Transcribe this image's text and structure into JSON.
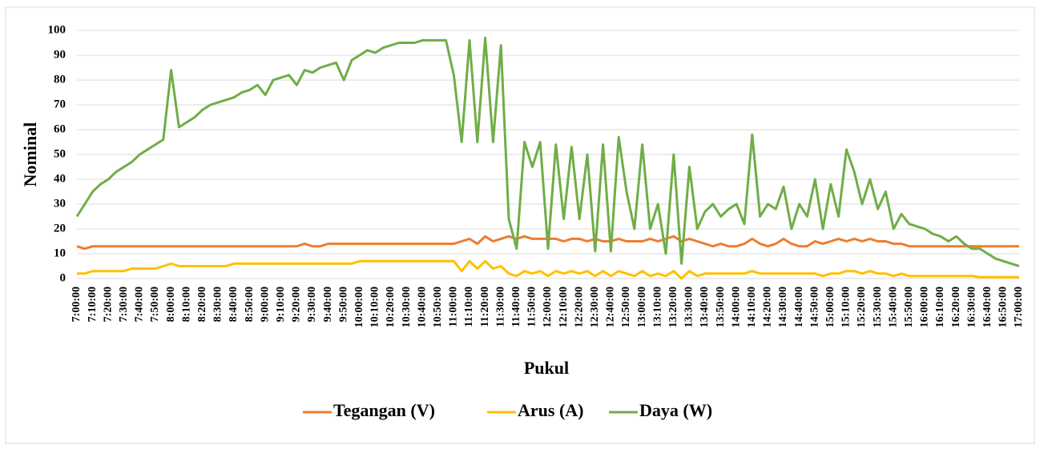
{
  "chart_data": {
    "type": "line",
    "x_label": "Pukul",
    "y_label": "Nominal",
    "categories": [
      "7:00:00",
      null,
      "7:10:00",
      null,
      "7:20:00",
      null,
      "7:30:00",
      null,
      "7:40:00",
      null,
      "7:50:00",
      null,
      "8:00:00",
      null,
      "8:10:00",
      null,
      "8:20:00",
      null,
      "8:30:00",
      null,
      "8:40:00",
      null,
      "8:50:00",
      null,
      "9:00:00",
      null,
      "9:10:00",
      null,
      "9:20:00",
      null,
      "9:30:00",
      null,
      "9:40:00",
      null,
      "9:50:00",
      null,
      "10:00:00",
      null,
      "10:10:00",
      null,
      "10:20:00",
      null,
      "10:30:00",
      null,
      "10:40:00",
      null,
      "10:50:00",
      null,
      "11:00:00",
      null,
      "11:10:00",
      null,
      "11:20:00",
      null,
      "11:30:00",
      null,
      "11:40:00",
      null,
      "11:50:00",
      null,
      "12:00:00",
      null,
      "12:10:00",
      null,
      "12:20:00",
      null,
      "12:30:00",
      null,
      "12:40:00",
      null,
      "12:50:00",
      null,
      "13:00:00",
      null,
      "13:10:00",
      null,
      "13:20:00",
      null,
      "13:30:00",
      null,
      "13:40:00",
      null,
      "13:50:00",
      null,
      "14:00:00",
      null,
      "14:10:00",
      null,
      "14:20:00",
      null,
      "14:30:00",
      null,
      "14:40:00",
      null,
      "14:50:00",
      null,
      "15:00:00",
      null,
      "15:10:00",
      null,
      "15:20:00",
      null,
      "15:30:00",
      null,
      "15:40:00",
      null,
      "15:50:00",
      null,
      "16:00:00",
      null,
      "16:10:00",
      null,
      "16:20:00",
      null,
      "16:30:00",
      null,
      "16:40:00",
      null,
      "16:50:00",
      null,
      "17:00:00"
    ],
    "series": [
      {
        "name": "Tegangan (V)",
        "color": "#ed7d31",
        "values": [
          13,
          12,
          13,
          13,
          13,
          13,
          13,
          13,
          13,
          13,
          13,
          13,
          13,
          13,
          13,
          13,
          13,
          13,
          13,
          13,
          13,
          13,
          13,
          13,
          13,
          13,
          13,
          13,
          13,
          14,
          13,
          13,
          14,
          14,
          14,
          14,
          14,
          14,
          14,
          14,
          14,
          14,
          14,
          14,
          14,
          14,
          14,
          14,
          14,
          15,
          16,
          14,
          17,
          15,
          16,
          17,
          16,
          17,
          16,
          16,
          16,
          16,
          15,
          16,
          16,
          15,
          16,
          15,
          15,
          16,
          15,
          15,
          15,
          16,
          15,
          16,
          17,
          15,
          16,
          15,
          14,
          13,
          14,
          13,
          13,
          14,
          16,
          14,
          13,
          14,
          16,
          14,
          13,
          13,
          15,
          14,
          15,
          16,
          15,
          16,
          15,
          16,
          15,
          15,
          14,
          14,
          13,
          13,
          13,
          13,
          13,
          13,
          13,
          13,
          13,
          13,
          13,
          13,
          13,
          13,
          13
        ]
      },
      {
        "name": "Arus (A)",
        "color": "#ffc000",
        "values": [
          2,
          2,
          3,
          3,
          3,
          3,
          3,
          4,
          4,
          4,
          4,
          5,
          6,
          5,
          5,
          5,
          5,
          5,
          5,
          5,
          6,
          6,
          6,
          6,
          6,
          6,
          6,
          6,
          6,
          6,
          6,
          6,
          6,
          6,
          6,
          6,
          7,
          7,
          7,
          7,
          7,
          7,
          7,
          7,
          7,
          7,
          7,
          7,
          7,
          3,
          7,
          4,
          7,
          4,
          5,
          2,
          1,
          3,
          2,
          3,
          1,
          3,
          2,
          3,
          2,
          3,
          1,
          3,
          1,
          3,
          2,
          1,
          3,
          1,
          2,
          1,
          3,
          0,
          3,
          1,
          2,
          2,
          2,
          2,
          2,
          2,
          3,
          2,
          2,
          2,
          2,
          2,
          2,
          2,
          2,
          1,
          2,
          2,
          3,
          3,
          2,
          3,
          2,
          2,
          1,
          2,
          1,
          1,
          1,
          1,
          1,
          1,
          1,
          1,
          1,
          0.5,
          0.5,
          0.5,
          0.5,
          0.5,
          0.5
        ]
      },
      {
        "name": "Daya (W)",
        "color": "#70ad47",
        "values": [
          25,
          30,
          35,
          38,
          40,
          43,
          45,
          47,
          50,
          52,
          54,
          56,
          84,
          61,
          63,
          65,
          68,
          70,
          71,
          72,
          73,
          75,
          76,
          78,
          74,
          80,
          81,
          82,
          78,
          84,
          83,
          85,
          86,
          87,
          80,
          88,
          90,
          92,
          91,
          93,
          94,
          95,
          95,
          95,
          96,
          96,
          96,
          96,
          82,
          55,
          96,
          55,
          97,
          55,
          94,
          24,
          12,
          55,
          45,
          55,
          12,
          54,
          24,
          53,
          24,
          50,
          11,
          54,
          11,
          57,
          35,
          20,
          54,
          20,
          30,
          10,
          50,
          6,
          45,
          20,
          27,
          30,
          25,
          28,
          30,
          22,
          58,
          25,
          30,
          28,
          37,
          20,
          30,
          25,
          40,
          20,
          38,
          25,
          52,
          43,
          30,
          40,
          28,
          35,
          20,
          26,
          22,
          21,
          20,
          18,
          17,
          15,
          17,
          14,
          12,
          12,
          10,
          8,
          7,
          6,
          5
        ]
      }
    ],
    "ylim": [
      0,
      100
    ],
    "yticks": [
      0,
      10,
      20,
      30,
      40,
      50,
      60,
      70,
      80,
      90,
      100
    ],
    "grid": true,
    "legend": "bottom"
  }
}
